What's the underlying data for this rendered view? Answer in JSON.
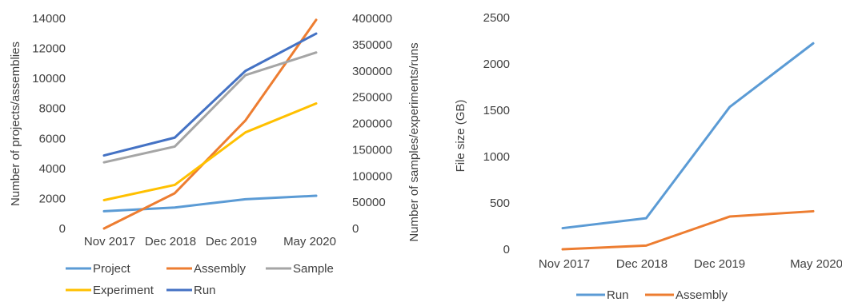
{
  "chart_data": [
    {
      "type": "line",
      "categories": [
        "Nov 2017",
        "Dec 2018",
        "Dec 2019",
        "May 2020"
      ],
      "ylabel": "Number of projects/assemblies",
      "y2label": "Number of samples/experiments/runs",
      "ylim": [
        0,
        14000
      ],
      "y2lim": [
        0,
        400000
      ],
      "yticks": [
        0,
        2000,
        4000,
        6000,
        8000,
        10000,
        12000,
        14000
      ],
      "y2ticks": [
        0,
        50000,
        100000,
        150000,
        200000,
        250000,
        300000,
        350000,
        400000
      ],
      "grid": false,
      "legend_position": "bottom",
      "series": [
        {
          "name": "Project",
          "axis": "left",
          "color": "#5B9BD5",
          "values": [
            1150,
            1400,
            1950,
            2180
          ]
        },
        {
          "name": "Assembly",
          "axis": "left",
          "color": "#ED7D31",
          "values": [
            0,
            2350,
            7200,
            13900
          ]
        },
        {
          "name": "Sample",
          "axis": "right",
          "color": "#A5A5A5",
          "values": [
            126000,
            156000,
            292000,
            335000
          ]
        },
        {
          "name": "Experiment",
          "axis": "right",
          "color": "#FFC000",
          "values": [
            54000,
            83000,
            183000,
            238000
          ]
        },
        {
          "name": "Run",
          "axis": "right",
          "color": "#4472C4",
          "values": [
            139000,
            173000,
            300000,
            371000
          ]
        }
      ]
    },
    {
      "type": "line",
      "categories": [
        "Nov 2017",
        "Dec 2018",
        "Dec 2019",
        "May 2020"
      ],
      "ylabel": "File size (GB)",
      "ylim": [
        0,
        2500
      ],
      "yticks": [
        0,
        500,
        1000,
        1500,
        2000,
        2500
      ],
      "grid": false,
      "legend_position": "bottom",
      "series": [
        {
          "name": "Run",
          "color": "#5B9BD5",
          "values": [
            228,
            335,
            1535,
            2222
          ]
        },
        {
          "name": "Assembly",
          "color": "#ED7D31",
          "values": [
            0,
            40,
            353,
            410
          ]
        }
      ]
    }
  ]
}
